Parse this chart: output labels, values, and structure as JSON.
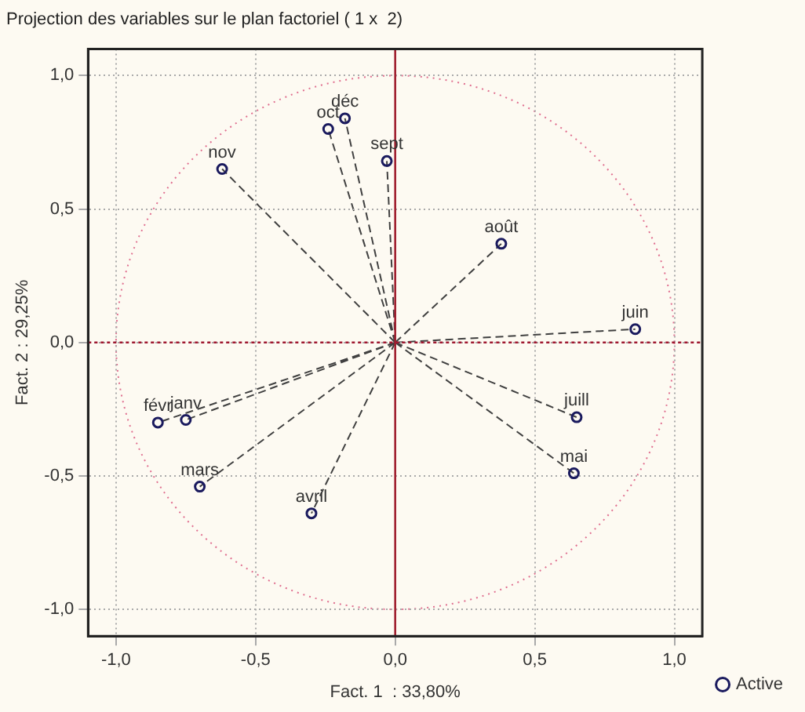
{
  "chart_data": {
    "type": "scatter",
    "title": "Projection des variables sur le plan factoriel ( 1 x  2)",
    "xlabel": "Fact. 1  : 33,80%",
    "ylabel": "Fact. 2 : 29,25%",
    "xlim": [
      -1.1,
      1.1
    ],
    "ylim": [
      -1.1,
      1.1
    ],
    "xticks": [
      {
        "value": -1,
        "label": "-1,0"
      },
      {
        "value": -0.5,
        "label": "-0,5"
      },
      {
        "value": 0,
        "label": "0,0"
      },
      {
        "value": 0.5,
        "label": "0,5"
      },
      {
        "value": 1,
        "label": "1,0"
      }
    ],
    "yticks": [
      {
        "value": -1,
        "label": "-1,0"
      },
      {
        "value": -0.5,
        "label": "-0,5"
      },
      {
        "value": 0,
        "label": "0,0"
      },
      {
        "value": 0.5,
        "label": "0,5"
      },
      {
        "value": 1,
        "label": "1,0"
      }
    ],
    "grid": true,
    "legend": "bottom right",
    "series": [
      {
        "name": "Active",
        "type": "scatter",
        "color": "#1a1a5e",
        "marker": "circle",
        "x": [
          -0.62,
          -0.24,
          -0.18,
          -0.03,
          0.38,
          0.86,
          0.65,
          0.64,
          -0.3,
          -0.7,
          -0.85,
          -0.75
        ],
        "values": [
          0.65,
          0.8,
          0.84,
          0.68,
          0.37,
          0.05,
          -0.28,
          -0.49,
          -0.64,
          -0.54,
          -0.3,
          -0.29
        ]
      }
    ],
    "ref_lines": [
      {
        "axis": "x",
        "value": 0,
        "color": "#a02030",
        "line_style": "solid"
      },
      {
        "axis": "y",
        "value": 0,
        "color": "#a01830",
        "line_style": "dotted"
      }
    ],
    "annotations": [
      {
        "text": "nov",
        "x": -0.62,
        "y": 0.65
      },
      {
        "text": "oct",
        "x": -0.24,
        "y": 0.8
      },
      {
        "text": "déc",
        "x": -0.18,
        "y": 0.84
      },
      {
        "text": "sept",
        "x": -0.03,
        "y": 0.68
      },
      {
        "text": "août",
        "x": 0.38,
        "y": 0.37
      },
      {
        "text": "juin",
        "x": 0.86,
        "y": 0.05
      },
      {
        "text": "juill",
        "x": 0.65,
        "y": -0.28
      },
      {
        "text": "mai",
        "x": 0.64,
        "y": -0.49
      },
      {
        "text": "avril",
        "x": -0.3,
        "y": -0.64
      },
      {
        "text": "mars",
        "x": -0.7,
        "y": -0.54
      },
      {
        "text": "févr",
        "x": -0.85,
        "y": -0.3
      },
      {
        "text": "janv",
        "x": -0.75,
        "y": -0.29
      }
    ]
  }
}
